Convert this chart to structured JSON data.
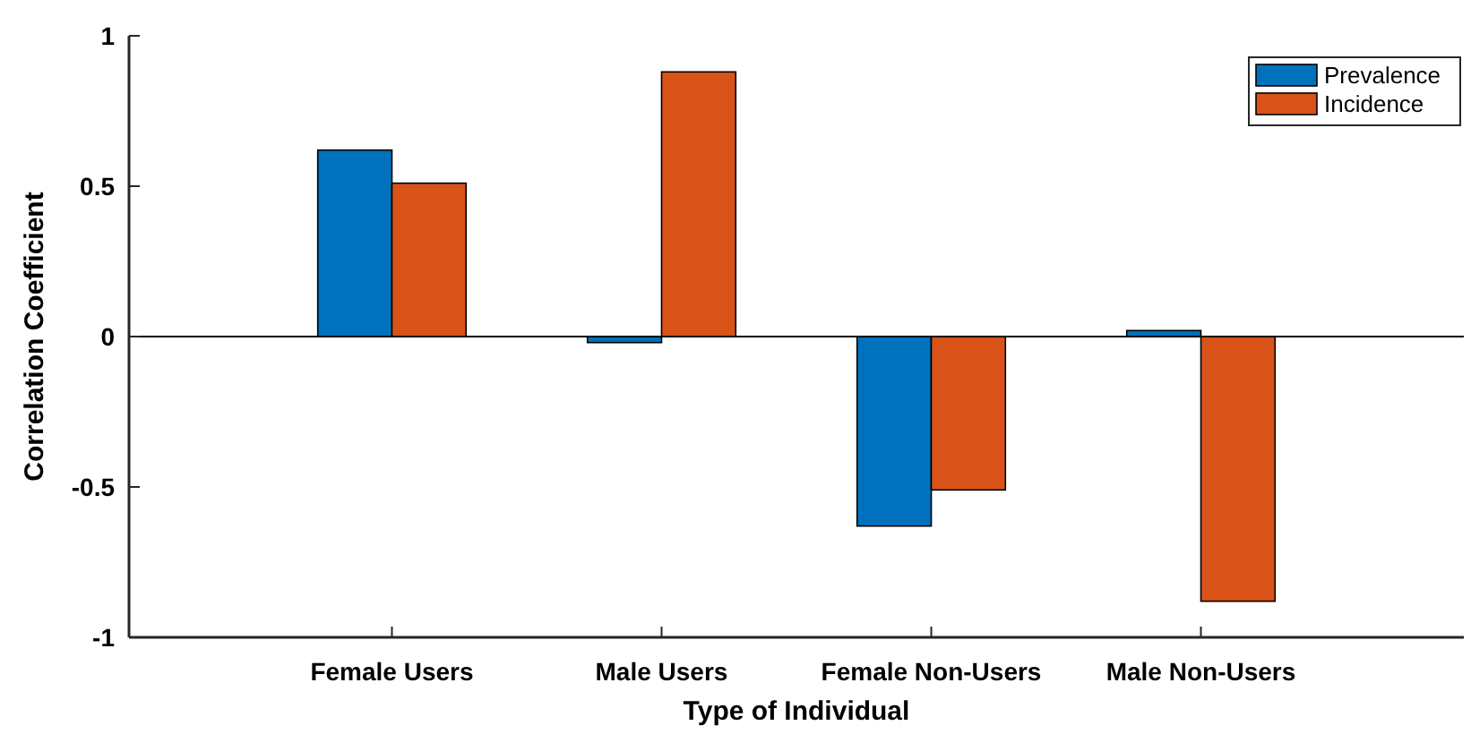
{
  "chart_data": {
    "type": "bar",
    "xlabel": "Type of Individual",
    "ylabel": "Correlation Coefficient",
    "categories": [
      "Female Users",
      "Male Users",
      "Female Non-Users",
      "Male Non-Users"
    ],
    "series": [
      {
        "name": "Prevalence",
        "color": "#0072bd",
        "values": [
          0.62,
          -0.02,
          -0.63,
          0.02
        ]
      },
      {
        "name": "Incidence",
        "color": "#d95319",
        "values": [
          0.51,
          0.88,
          -0.51,
          -0.88
        ]
      }
    ],
    "ylim": [
      -1,
      1
    ],
    "yticks": [
      -1,
      -0.5,
      0,
      0.5,
      1
    ],
    "legend": "top right",
    "ref_lines": [
      {
        "axis": "y",
        "value": 0,
        "color": "#000000"
      }
    ]
  }
}
